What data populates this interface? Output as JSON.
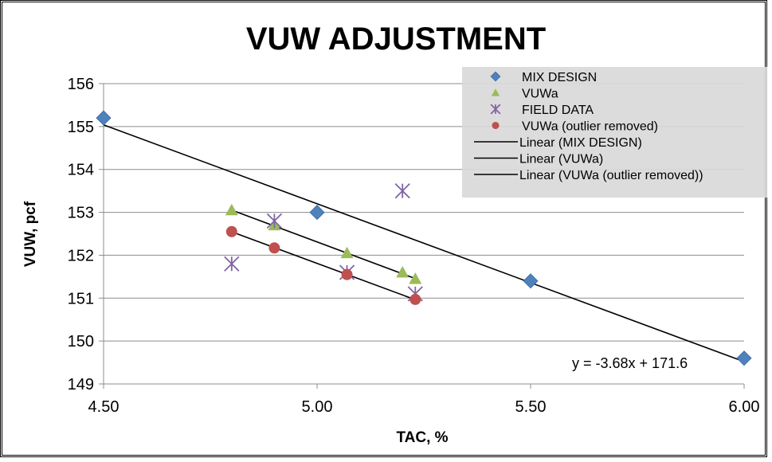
{
  "chart_data": {
    "type": "scatter",
    "title": "VUW ADJUSTMENT",
    "xlabel": "TAC, %",
    "ylabel": "VUW, pcf",
    "xlim": [
      4.5,
      6.0
    ],
    "ylim": [
      149,
      156
    ],
    "x_ticks": [
      "4.50",
      "5.00",
      "5.50",
      "6.00"
    ],
    "y_ticks": [
      "149",
      "150",
      "151",
      "152",
      "153",
      "154",
      "155",
      "156"
    ],
    "y_grid": true,
    "legend_position": "top-right",
    "series": [
      {
        "name": "MIX DESIGN",
        "marker": "diamond",
        "color": "#4f81bd",
        "points": [
          [
            4.5,
            155.2
          ],
          [
            5.0,
            153.0
          ],
          [
            5.5,
            151.4
          ],
          [
            6.0,
            149.6
          ]
        ]
      },
      {
        "name": "VUWa",
        "marker": "triangle",
        "color": "#9bbb59",
        "points": [
          [
            4.8,
            153.05
          ],
          [
            4.9,
            152.7
          ],
          [
            5.07,
            152.05
          ],
          [
            5.2,
            151.6
          ],
          [
            5.23,
            151.45
          ]
        ]
      },
      {
        "name": "FIELD DATA",
        "marker": "star",
        "color": "#8064a2",
        "points": [
          [
            4.8,
            151.8
          ],
          [
            4.9,
            152.8
          ],
          [
            5.07,
            151.6
          ],
          [
            5.2,
            153.5
          ],
          [
            5.23,
            151.1
          ]
        ]
      },
      {
        "name": "VUWa (outlier removed)",
        "marker": "circle",
        "color": "#c0504d",
        "points": [
          [
            4.8,
            152.55
          ],
          [
            4.9,
            152.17
          ],
          [
            5.07,
            151.55
          ],
          [
            5.23,
            150.97
          ]
        ]
      }
    ],
    "trendlines": [
      {
        "name": "Linear (MIX DESIGN)",
        "color": "#000000",
        "x_range": [
          4.5,
          6.0
        ],
        "slope": -3.68,
        "intercept": 171.6
      },
      {
        "name": "Linear (VUWa)",
        "color": "#000000",
        "x_range": [
          4.8,
          5.23
        ],
        "slope": -3.71,
        "intercept": 170.86
      },
      {
        "name": "Linear (VUWa (outlier removed))",
        "color": "#000000",
        "x_range": [
          4.8,
          5.23
        ],
        "slope": -3.68,
        "intercept": 170.21
      }
    ],
    "annotation": "y = -3.68x + 171.6"
  }
}
